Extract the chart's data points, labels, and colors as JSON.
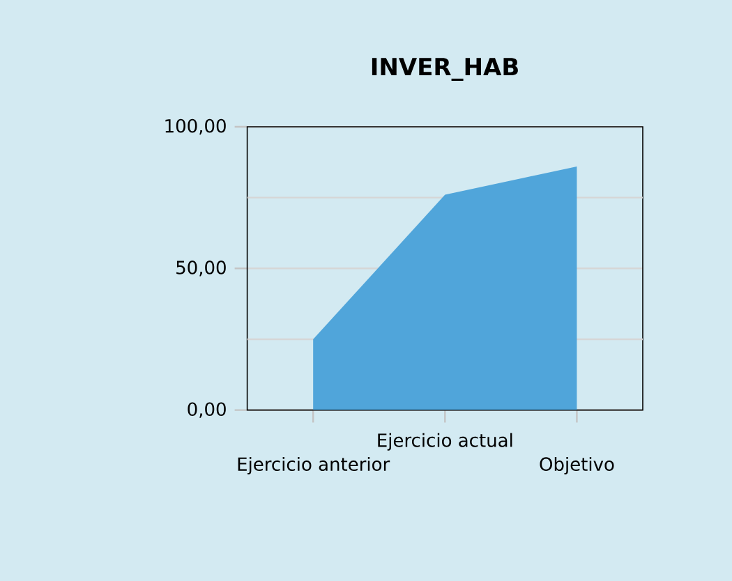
{
  "chart_data": {
    "type": "area",
    "title": "INVER_HAB",
    "categories": [
      "Ejercicio anterior",
      "Ejercicio actual",
      "Objetivo"
    ],
    "series": [
      {
        "color": "#50a5da",
        "values": [
          25,
          76,
          86
        ]
      }
    ],
    "ylim": [
      0,
      100
    ],
    "yticks": [
      {
        "value": 0,
        "label": "0,00"
      },
      {
        "value": 25,
        "label": null
      },
      {
        "value": 50,
        "label": "50,00"
      },
      {
        "value": 75,
        "label": null
      },
      {
        "value": 100,
        "label": "100,00"
      }
    ],
    "grid": "y"
  }
}
